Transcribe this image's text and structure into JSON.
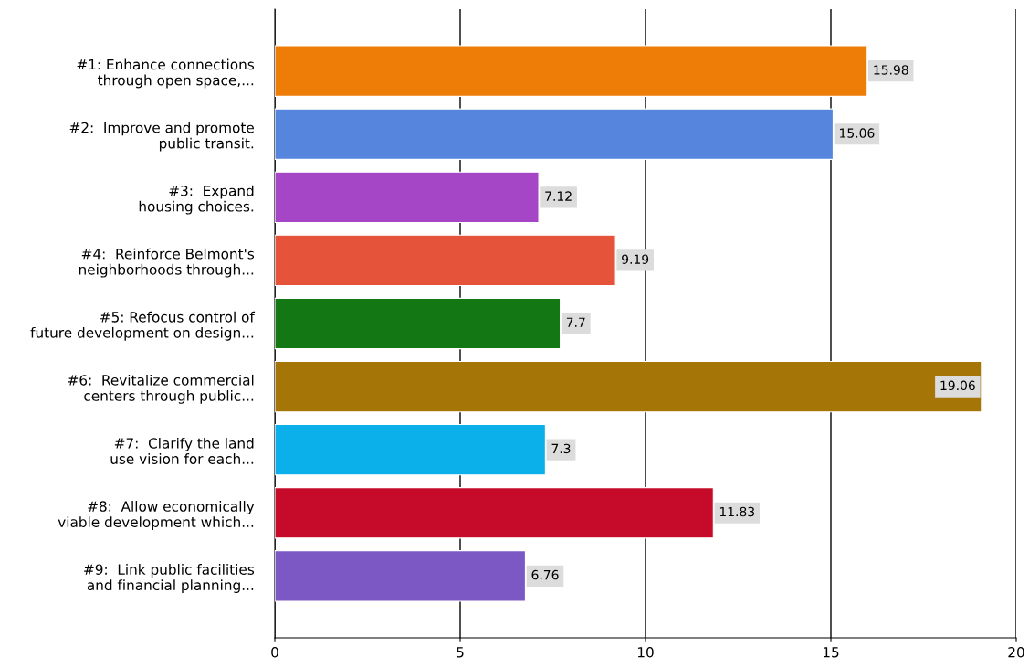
{
  "chart_data": {
    "type": "bar",
    "orientation": "horizontal",
    "categories": [
      "#1: Enhance connections\nthrough open space,...",
      "#2:  Improve and promote\npublic transit.",
      "#3:  Expand\nhousing choices.",
      "#4:  Reinforce Belmont's\nneighborhoods through...",
      "#5: Refocus control of\nfuture development on design...",
      "#6:  Revitalize commercial\ncenters through public...",
      "#7:  Clarify the land\nuse vision for each...",
      "#8:  Allow economically\nviable development which...",
      "#9:  Link public facilities\nand financial planning..."
    ],
    "values": [
      15.98,
      15.06,
      7.12,
      9.19,
      7.7,
      19.06,
      7.3,
      11.83,
      6.76
    ],
    "colors": [
      "#ee7d08",
      "#5585dc",
      "#a546c6",
      "#e5533a",
      "#137813",
      "#a67508",
      "#0bb0ea",
      "#c50a2a",
      "#7c58c4"
    ],
    "xlim": [
      0,
      20
    ],
    "xticks": [
      0,
      5,
      10,
      15,
      20
    ],
    "grid": "x",
    "data_labels": true
  }
}
